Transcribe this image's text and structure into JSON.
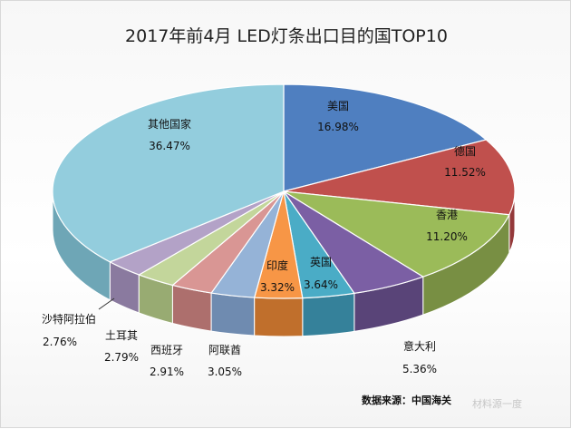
{
  "chart_data": {
    "type": "pie",
    "title": "2017年前4月 LED灯条出口目的国TOP10",
    "slices": [
      {
        "label": "美国",
        "value_label": "16.98%",
        "value": 16.98,
        "color": "#4f7fc0",
        "side": "#3b6198"
      },
      {
        "label": "德国",
        "value_label": "11.52%",
        "value": 11.52,
        "color": "#c0504d",
        "side": "#94393a"
      },
      {
        "label": "香港",
        "value_label": "11.20%",
        "value": 11.2,
        "color": "#9bbb59",
        "side": "#788f43"
      },
      {
        "label": "意大利",
        "value_label": "5.36%",
        "value": 5.36,
        "color": "#7b5fa4",
        "side": "#594478"
      },
      {
        "label": "英国",
        "value_label": "3.64%",
        "value": 3.64,
        "color": "#4aacc6",
        "side": "#35819a"
      },
      {
        "label": "印度",
        "value_label": "3.32%",
        "value": 3.32,
        "color": "#f79646",
        "side": "#c06f2c"
      },
      {
        "label": "阿联酋",
        "value_label": "3.05%",
        "value": 3.05,
        "color": "#95b3d7",
        "side": "#6f8bb0"
      },
      {
        "label": "西班牙",
        "value_label": "2.91%",
        "value": 2.91,
        "color": "#d99694",
        "side": "#ad6f6d"
      },
      {
        "label": "土耳其",
        "value_label": "2.79%",
        "value": 2.79,
        "color": "#c3d69b",
        "side": "#98ab72"
      },
      {
        "label": "沙特阿拉伯",
        "value_label": "2.76%",
        "value": 2.76,
        "color": "#b3a2c7",
        "side": "#8a7a9f"
      },
      {
        "label": "其他国家",
        "value_label": "36.47%",
        "value": 36.47,
        "color": "#93cddd",
        "side": "#6ea6b6"
      }
    ]
  },
  "source_note": "数据来源：中国海关",
  "watermark": "材料源一度"
}
